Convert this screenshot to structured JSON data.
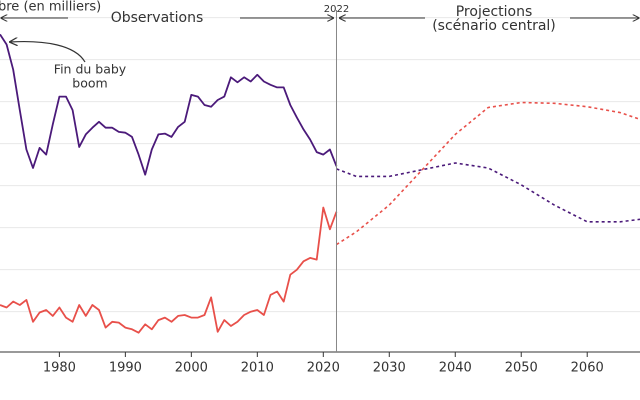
{
  "chart_data": {
    "type": "line",
    "title": "bre (en milliers)",
    "observations_label": "Observations",
    "projections_label": [
      "Projections",
      "(scénario central)"
    ],
    "divider": 2022,
    "annotation": [
      "Fin du baby",
      "boom"
    ],
    "xlim": [
      1971,
      2068
    ],
    "xticks": [
      1980,
      1990,
      2000,
      2010,
      2020,
      2030,
      2040,
      2050,
      2060
    ],
    "ylim": [
      502,
      921
    ],
    "yticks": [
      550,
      600,
      650,
      700,
      750,
      800,
      850,
      900
    ],
    "grid": true,
    "series": [
      {
        "color": "#4b1a7a",
        "dashed": false,
        "x": [
          1971,
          1972,
          1973,
          1974,
          1975,
          1976,
          1977,
          1978,
          1979,
          1980,
          1981,
          1982,
          1983,
          1984,
          1985,
          1986,
          1987,
          1988,
          1989,
          1990,
          1991,
          1992,
          1993,
          1994,
          1995,
          1996,
          1997,
          1998,
          1999,
          2000,
          2001,
          2002,
          2003,
          2004,
          2005,
          2006,
          2007,
          2008,
          2009,
          2010,
          2011,
          2012,
          2013,
          2014,
          2015,
          2016,
          2017,
          2018,
          2019,
          2020,
          2021,
          2022
        ],
        "values": [
          880,
          868,
          838,
          790,
          743,
          721,
          745,
          737,
          773,
          806,
          806,
          790,
          746,
          761,
          769,
          776,
          769,
          769,
          764,
          763,
          758,
          737,
          713,
          743,
          761,
          762,
          758,
          770,
          776,
          808,
          806,
          796,
          794,
          802,
          806,
          829,
          823,
          829,
          824,
          832,
          824,
          820,
          817,
          817,
          796,
          781,
          767,
          755,
          740,
          737,
          743,
          723
        ]
      },
      {
        "color": "#e8504a",
        "dashed": false,
        "x": [
          1971,
          1972,
          1973,
          1974,
          1975,
          1976,
          1977,
          1978,
          1979,
          1980,
          1981,
          1982,
          1983,
          1984,
          1985,
          1986,
          1987,
          1988,
          1989,
          1990,
          1991,
          1992,
          1993,
          1994,
          1995,
          1996,
          1997,
          1998,
          1999,
          2000,
          2001,
          2002,
          2003,
          2004,
          2005,
          2006,
          2007,
          2008,
          2009,
          2010,
          2011,
          2012,
          2013,
          2014,
          2015,
          2016,
          2017,
          2018,
          2019,
          2020,
          2021,
          2022
        ],
        "values": [
          558,
          555,
          562,
          558,
          564,
          538,
          549,
          552,
          545,
          555,
          543,
          538,
          558,
          545,
          558,
          552,
          531,
          538,
          537,
          531,
          529,
          525,
          535,
          529,
          540,
          543,
          538,
          545,
          546,
          543,
          543,
          546,
          567,
          526,
          540,
          533,
          538,
          546,
          550,
          552,
          546,
          570,
          574,
          562,
          594,
          600,
          610,
          614,
          612,
          674,
          648,
          669
        ]
      },
      {
        "color": "#4b1a7a",
        "dashed": true,
        "x": [
          2022,
          2025,
          2030,
          2035,
          2040,
          2045,
          2050,
          2055,
          2060,
          2065,
          2068
        ],
        "values": [
          720,
          711,
          711,
          719,
          727,
          721,
          701,
          677,
          657,
          657,
          660
        ]
      },
      {
        "color": "#e8504a",
        "dashed": true,
        "x": [
          2022,
          2025,
          2030,
          2035,
          2040,
          2045,
          2050,
          2055,
          2060,
          2065,
          2068
        ],
        "values": [
          630,
          645,
          677,
          719,
          761,
          793,
          799,
          798,
          794,
          787,
          779
        ]
      }
    ]
  }
}
